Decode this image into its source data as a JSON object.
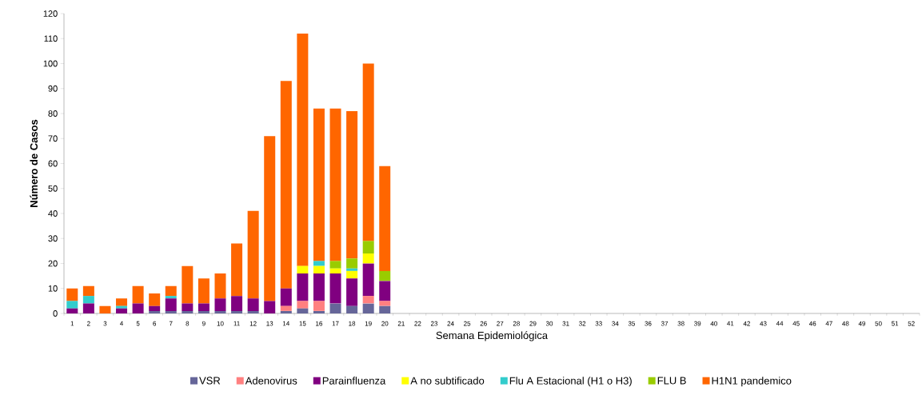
{
  "chart_data": {
    "type": "bar",
    "stacked": true,
    "xlabel": "Semana Epidemiológica",
    "ylabel": "Número de Casos",
    "categories": [
      "1",
      "2",
      "3",
      "4",
      "5",
      "6",
      "7",
      "8",
      "9",
      "10",
      "11",
      "12",
      "13",
      "14",
      "15",
      "16",
      "17",
      "18",
      "19",
      "20",
      "21",
      "22",
      "23",
      "24",
      "25",
      "26",
      "27",
      "28",
      "29",
      "30",
      "31",
      "32",
      "33",
      "34",
      "35",
      "36",
      "37",
      "38",
      "39",
      "40",
      "41",
      "42",
      "43",
      "44",
      "45",
      "46",
      "47",
      "48",
      "49",
      "50",
      "51",
      "52"
    ],
    "ylim": [
      0,
      120
    ],
    "yticks": [
      0,
      10,
      20,
      30,
      40,
      50,
      60,
      70,
      80,
      90,
      100,
      110,
      120
    ],
    "grid": false,
    "legend": "bottom",
    "series": [
      {
        "name": "VSR",
        "color": "#666699",
        "values": [
          0,
          0,
          0,
          0,
          0,
          1,
          1,
          1,
          1,
          1,
          1,
          1,
          0,
          1,
          2,
          1,
          4,
          3,
          4,
          3,
          0,
          0,
          0,
          0,
          0,
          0,
          0,
          0,
          0,
          0,
          0,
          0,
          0,
          0,
          0,
          0,
          0,
          0,
          0,
          0,
          0,
          0,
          0,
          0,
          0,
          0,
          0,
          0,
          0,
          0,
          0,
          0
        ]
      },
      {
        "name": "Adenovirus",
        "color": "#ff8080",
        "values": [
          0,
          0,
          0,
          0,
          0,
          0,
          0,
          0,
          0,
          0,
          0,
          0,
          0,
          2,
          3,
          4,
          0,
          0,
          3,
          2,
          0,
          0,
          0,
          0,
          0,
          0,
          0,
          0,
          0,
          0,
          0,
          0,
          0,
          0,
          0,
          0,
          0,
          0,
          0,
          0,
          0,
          0,
          0,
          0,
          0,
          0,
          0,
          0,
          0,
          0,
          0,
          0
        ]
      },
      {
        "name": "Parainfluenza",
        "color": "#800080",
        "values": [
          2,
          4,
          0,
          2,
          4,
          2,
          5,
          3,
          3,
          5,
          6,
          5,
          5,
          7,
          11,
          11,
          12,
          11,
          13,
          8,
          0,
          0,
          0,
          0,
          0,
          0,
          0,
          0,
          0,
          0,
          0,
          0,
          0,
          0,
          0,
          0,
          0,
          0,
          0,
          0,
          0,
          0,
          0,
          0,
          0,
          0,
          0,
          0,
          0,
          0,
          0,
          0
        ]
      },
      {
        "name": "A no subtificado",
        "color": "#ffff00",
        "values": [
          0,
          0,
          0,
          0,
          0,
          0,
          0,
          0,
          0,
          0,
          0,
          0,
          0,
          0,
          3,
          3,
          2,
          3,
          4,
          0,
          0,
          0,
          0,
          0,
          0,
          0,
          0,
          0,
          0,
          0,
          0,
          0,
          0,
          0,
          0,
          0,
          0,
          0,
          0,
          0,
          0,
          0,
          0,
          0,
          0,
          0,
          0,
          0,
          0,
          0,
          0,
          0
        ]
      },
      {
        "name": "Flu A Estacional (H1 o H3)",
        "color": "#33cccc",
        "values": [
          3,
          3,
          0,
          1,
          0,
          0,
          1,
          0,
          0,
          0,
          0,
          0,
          0,
          0,
          0,
          2,
          0,
          1,
          0,
          0,
          0,
          0,
          0,
          0,
          0,
          0,
          0,
          0,
          0,
          0,
          0,
          0,
          0,
          0,
          0,
          0,
          0,
          0,
          0,
          0,
          0,
          0,
          0,
          0,
          0,
          0,
          0,
          0,
          0,
          0,
          0,
          0
        ]
      },
      {
        "name": "FLU B",
        "color": "#99cc00",
        "values": [
          0,
          0,
          0,
          0,
          0,
          0,
          0,
          0,
          0,
          0,
          0,
          0,
          0,
          0,
          0,
          0,
          3,
          4,
          5,
          4,
          0,
          0,
          0,
          0,
          0,
          0,
          0,
          0,
          0,
          0,
          0,
          0,
          0,
          0,
          0,
          0,
          0,
          0,
          0,
          0,
          0,
          0,
          0,
          0,
          0,
          0,
          0,
          0,
          0,
          0,
          0,
          0
        ]
      },
      {
        "name": "H1N1 pandemico",
        "color": "#ff6600",
        "values": [
          5,
          4,
          3,
          3,
          7,
          5,
          4,
          15,
          10,
          10,
          21,
          35,
          66,
          83,
          93,
          61,
          61,
          59,
          71,
          42,
          0,
          0,
          0,
          0,
          0,
          0,
          0,
          0,
          0,
          0,
          0,
          0,
          0,
          0,
          0,
          0,
          0,
          0,
          0,
          0,
          0,
          0,
          0,
          0,
          0,
          0,
          0,
          0,
          0,
          0,
          0,
          0
        ]
      }
    ]
  }
}
